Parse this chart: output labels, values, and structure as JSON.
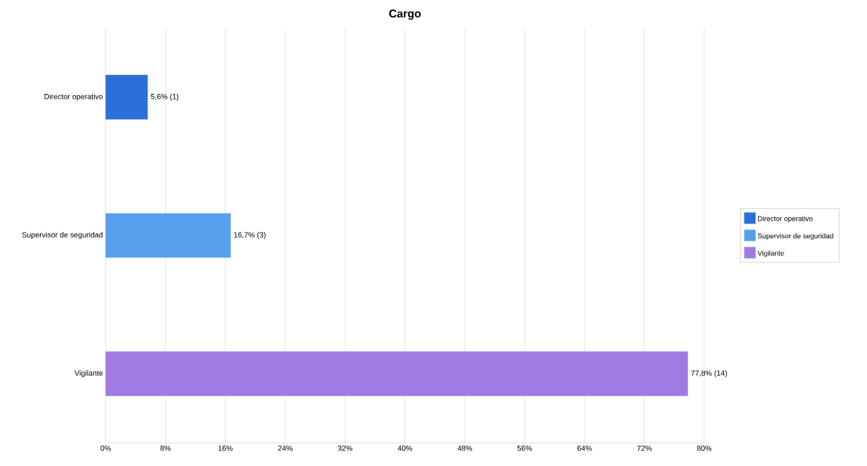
{
  "chart_data": {
    "type": "bar",
    "orientation": "horizontal",
    "title": "Cargo",
    "categories": [
      "Director operativo",
      "Supervisor de seguridad",
      "Vigilante"
    ],
    "series": [
      {
        "name": "Director operativo",
        "color": "#2b6fd9",
        "values": [
          5.6,
          null,
          null
        ],
        "value_labels": [
          "5,6% (1)",
          null,
          null
        ]
      },
      {
        "name": "Supervisor de seguridad",
        "color": "#57a0ee",
        "values": [
          null,
          16.7,
          null
        ],
        "value_labels": [
          null,
          "16,7% (3)",
          null
        ]
      },
      {
        "name": "Vigilante",
        "color": "#a27ae3",
        "values": [
          null,
          null,
          77.8
        ],
        "value_labels": [
          null,
          null,
          "77,8% (14)"
        ]
      }
    ],
    "xlim": [
      0,
      80
    ],
    "xticks": [
      {
        "value": 0,
        "label": "0%"
      },
      {
        "value": 8,
        "label": "8%"
      },
      {
        "value": 16,
        "label": "16%"
      },
      {
        "value": 24,
        "label": "24%"
      },
      {
        "value": 32,
        "label": "32%"
      },
      {
        "value": 40,
        "label": "40%"
      },
      {
        "value": 48,
        "label": "48%"
      },
      {
        "value": 56,
        "label": "56%"
      },
      {
        "value": 64,
        "label": "64%"
      },
      {
        "value": 72,
        "label": "72%"
      },
      {
        "value": 80,
        "label": "80%"
      }
    ],
    "grid": "x",
    "legend": "right"
  }
}
